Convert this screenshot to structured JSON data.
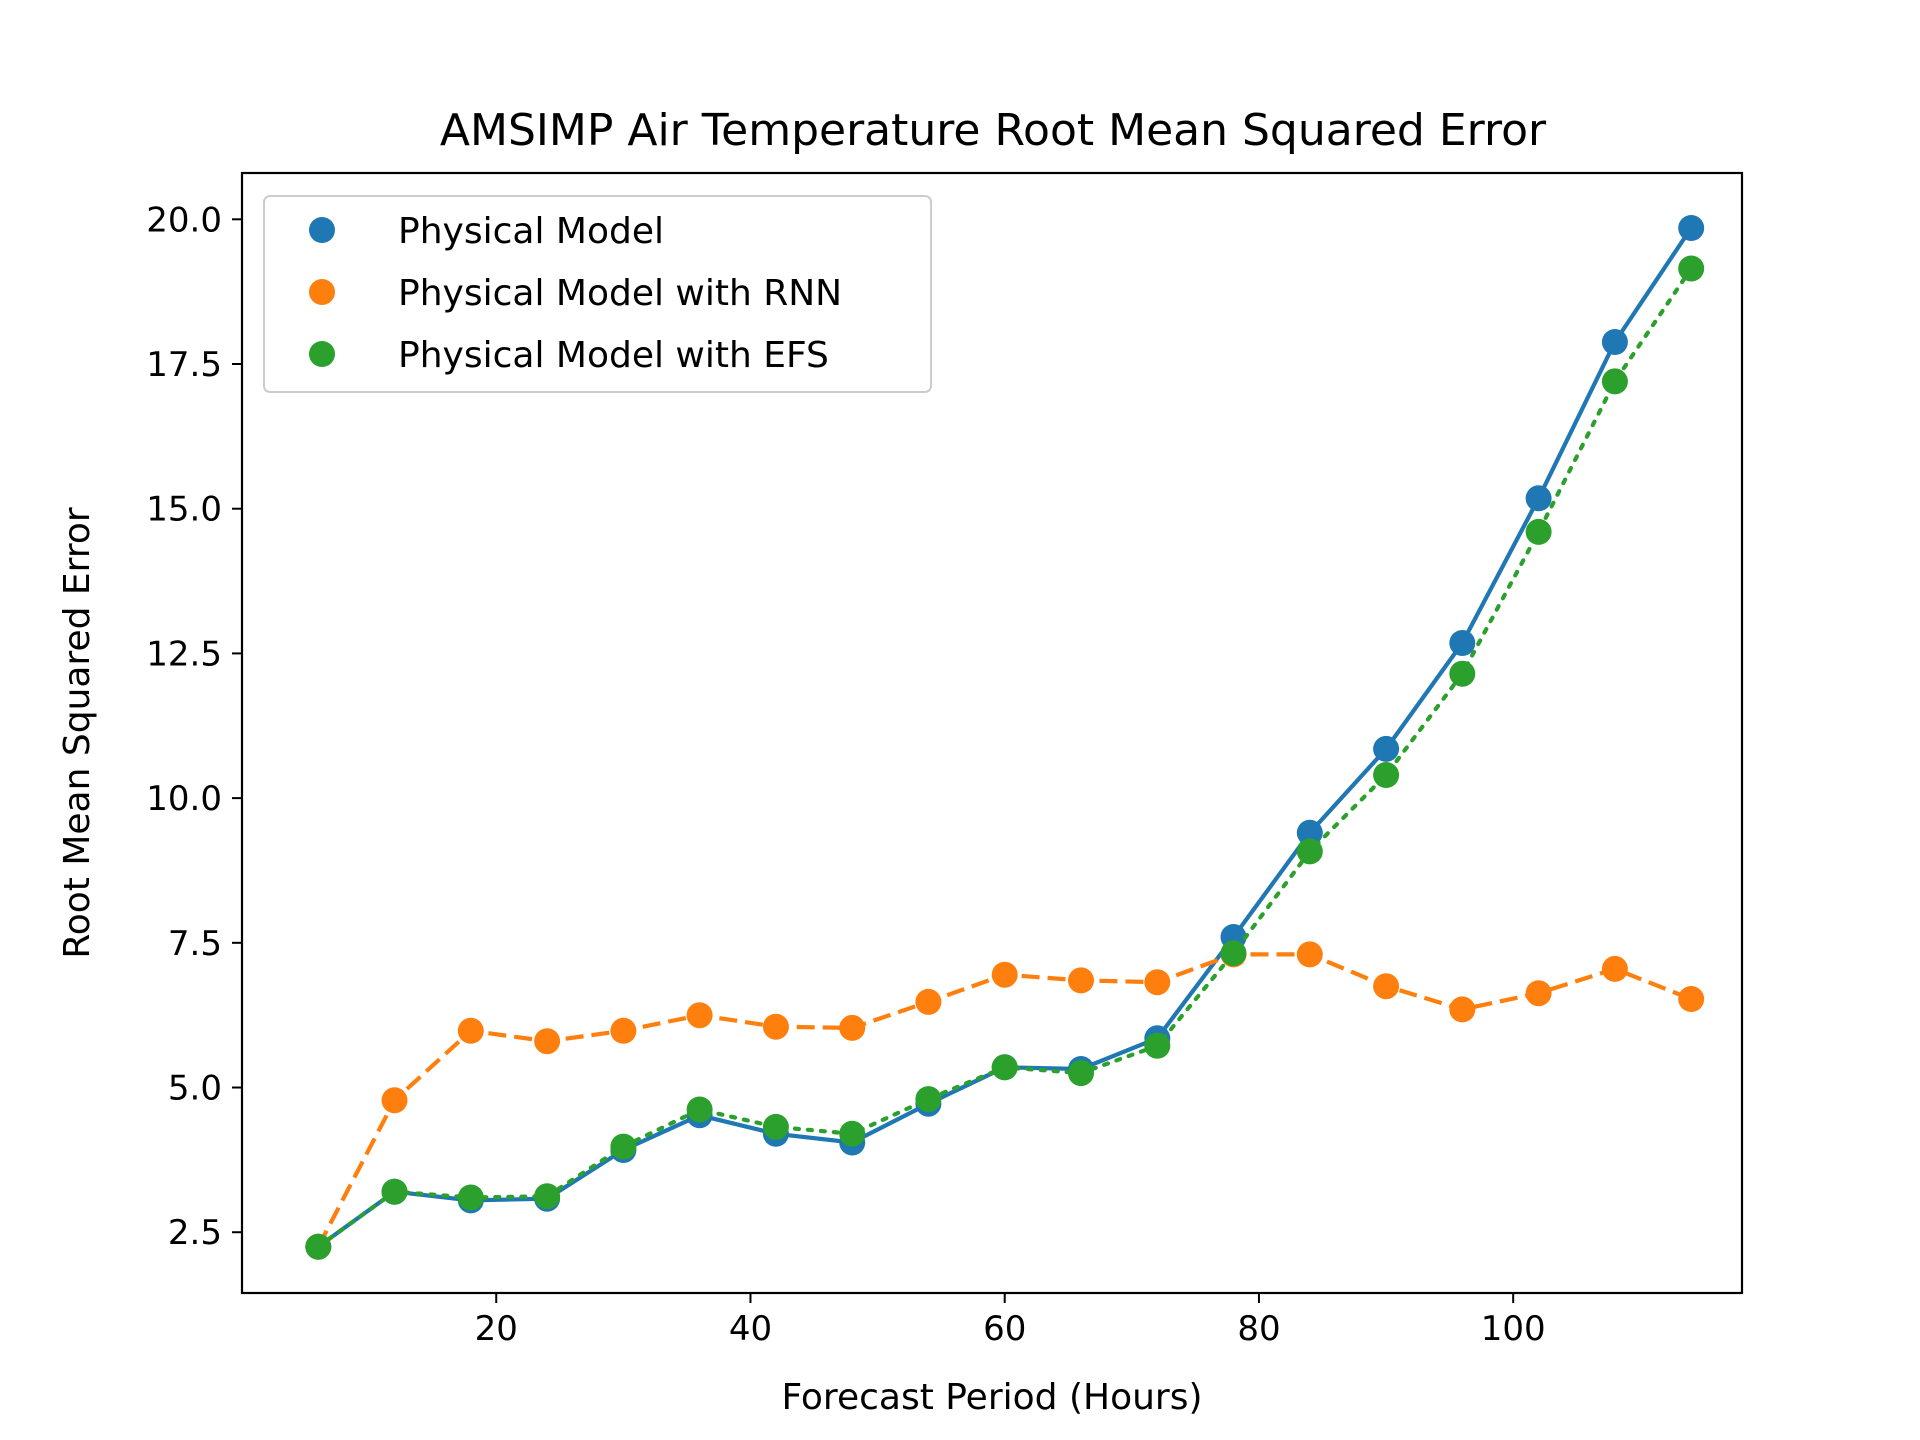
{
  "chart_data": {
    "type": "line",
    "title": "AMSIMP Air Temperature Root Mean Squared Error",
    "xlabel": "Forecast Period (Hours)",
    "ylabel": "Root Mean Squared Error",
    "xlim": [
      0,
      118
    ],
    "ylim": [
      1.45,
      20.8
    ],
    "xticks": [
      20,
      40,
      60,
      80,
      100
    ],
    "yticks": [
      2.5,
      5.0,
      7.5,
      10.0,
      12.5,
      15.0,
      17.5,
      20.0
    ],
    "xtick_labels": [
      "20",
      "40",
      "60",
      "80",
      "100"
    ],
    "ytick_labels": [
      "2.5",
      "5.0",
      "7.5",
      "10.0",
      "12.5",
      "15.0",
      "17.5",
      "20.0"
    ],
    "grid": false,
    "legend_position": "top-left",
    "x": [
      6,
      12,
      18,
      24,
      30,
      36,
      42,
      48,
      54,
      60,
      66,
      72,
      78,
      84,
      90,
      96,
      102,
      108,
      114
    ],
    "series": [
      {
        "name": "Physical Model",
        "color": "#1f77b4",
        "line_style": "solid",
        "values": [
          2.25,
          3.2,
          3.05,
          3.08,
          3.92,
          4.52,
          4.2,
          4.05,
          4.72,
          5.35,
          5.32,
          5.85,
          7.6,
          9.4,
          10.85,
          12.68,
          15.18,
          17.88,
          19.85
        ]
      },
      {
        "name": "Physical Model with RNN",
        "color": "#ff7f0e",
        "line_style": "dashed",
        "values": [
          2.25,
          4.78,
          5.98,
          5.8,
          5.98,
          6.25,
          6.05,
          6.03,
          6.48,
          6.95,
          6.85,
          6.82,
          7.3,
          7.3,
          6.75,
          6.35,
          6.63,
          7.05,
          6.53
        ]
      },
      {
        "name": "Physical Model with EFS",
        "color": "#2ca02c",
        "line_style": "dotted",
        "values": [
          2.25,
          3.2,
          3.1,
          3.12,
          3.98,
          4.62,
          4.32,
          4.2,
          4.8,
          5.35,
          5.25,
          5.72,
          7.32,
          9.08,
          10.4,
          12.15,
          14.6,
          17.2,
          19.15
        ]
      }
    ]
  }
}
